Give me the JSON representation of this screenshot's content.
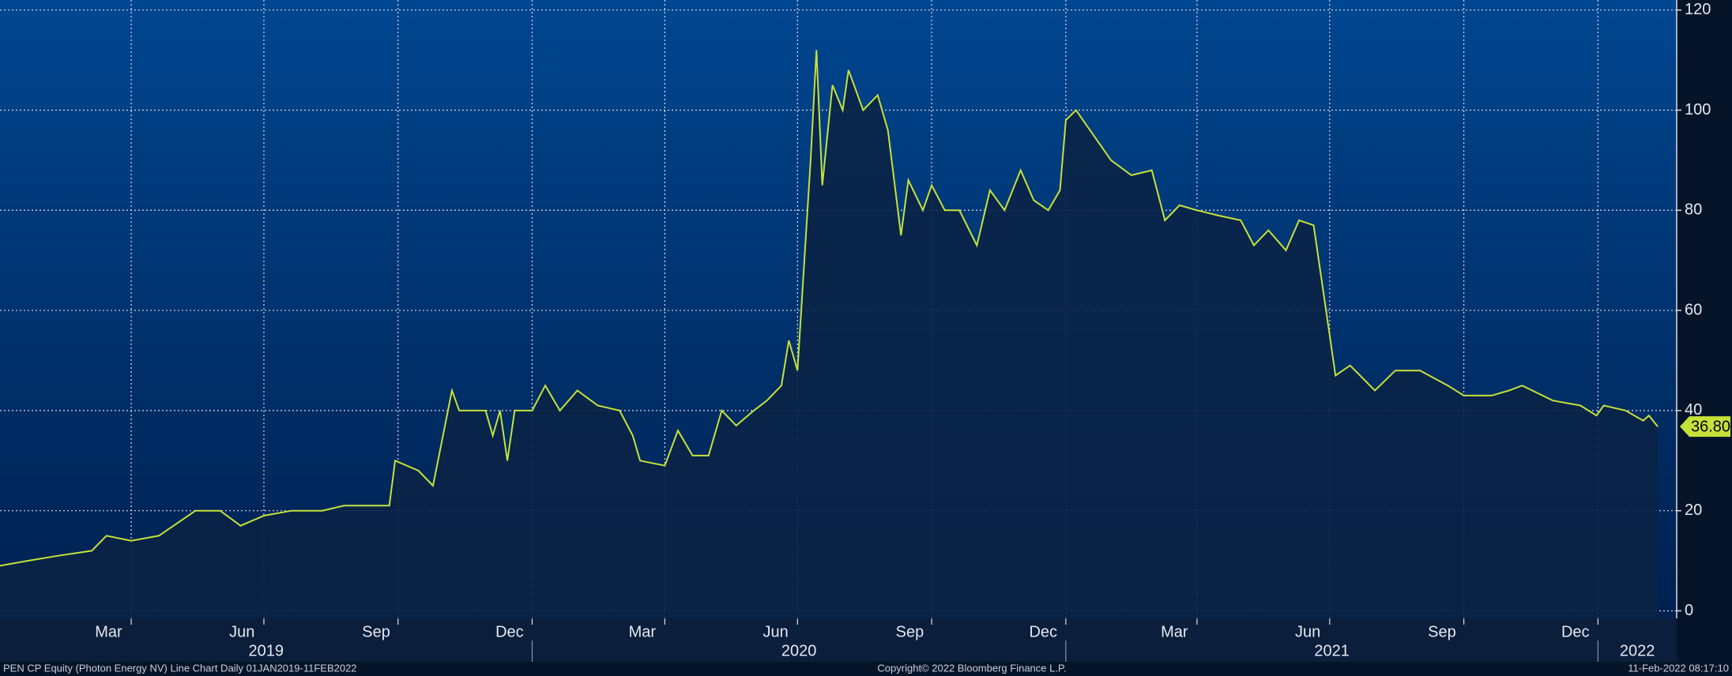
{
  "chart_data": {
    "type": "line",
    "x": [
      "2019-01-01",
      "2019-01-20",
      "2019-02-10",
      "2019-03-05",
      "2019-03-15",
      "2019-04-01",
      "2019-04-20",
      "2019-05-05",
      "2019-05-15",
      "2019-06-01",
      "2019-06-15",
      "2019-07-01",
      "2019-07-20",
      "2019-08-10",
      "2019-08-25",
      "2019-09-10",
      "2019-09-25",
      "2019-09-29",
      "2019-10-15",
      "2019-10-25",
      "2019-11-07",
      "2019-11-12",
      "2019-11-30",
      "2019-12-05",
      "2019-12-10",
      "2019-12-15",
      "2019-12-20",
      "2020-01-01",
      "2020-01-10",
      "2020-01-20",
      "2020-02-01",
      "2020-02-15",
      "2020-03-01",
      "2020-03-10",
      "2020-03-15",
      "2020-04-01",
      "2020-04-10",
      "2020-04-20",
      "2020-05-01",
      "2020-05-10",
      "2020-05-20",
      "2020-06-01",
      "2020-06-10",
      "2020-06-20",
      "2020-06-25",
      "2020-07-01",
      "2020-07-10",
      "2020-07-14",
      "2020-07-18",
      "2020-07-25",
      "2020-08-01",
      "2020-08-05",
      "2020-08-15",
      "2020-08-25",
      "2020-09-01",
      "2020-09-10",
      "2020-09-15",
      "2020-09-25",
      "2020-10-01",
      "2020-10-10",
      "2020-10-20",
      "2020-11-01",
      "2020-11-10",
      "2020-11-20",
      "2020-12-01",
      "2020-12-10",
      "2020-12-20",
      "2020-12-28",
      "2021-01-01",
      "2021-01-08",
      "2021-01-20",
      "2021-02-01",
      "2021-02-15",
      "2021-03-01",
      "2021-03-10",
      "2021-03-20",
      "2021-04-01",
      "2021-04-15",
      "2021-05-01",
      "2021-05-10",
      "2021-05-20",
      "2021-06-01",
      "2021-06-10",
      "2021-06-20",
      "2021-06-30",
      "2021-07-05",
      "2021-07-15",
      "2021-08-01",
      "2021-08-15",
      "2021-09-01",
      "2021-09-20",
      "2021-10-01",
      "2021-10-20",
      "2021-11-01",
      "2021-11-10",
      "2021-12-01",
      "2021-12-20",
      "2021-12-31",
      "2022-01-05",
      "2022-01-20",
      "2022-02-01",
      "2022-02-05",
      "2022-02-11"
    ],
    "series": [
      {
        "color": "#c6e13a",
        "values": [
          9,
          10,
          11,
          12,
          15,
          14,
          15,
          18,
          20,
          20,
          17,
          19,
          20,
          20,
          21,
          21,
          21,
          30,
          28,
          25,
          44,
          40,
          40,
          35,
          40,
          30,
          40,
          40,
          45,
          40,
          44,
          41,
          40,
          35,
          30,
          29,
          36,
          31,
          31,
          40,
          37,
          40,
          42,
          45,
          54,
          48,
          90,
          112,
          85,
          105,
          100,
          108,
          100,
          103,
          96,
          75,
          86,
          80,
          85,
          80,
          80,
          73,
          84,
          80,
          88,
          82,
          80,
          84,
          98,
          100,
          95,
          90,
          87,
          88,
          78,
          81,
          80,
          79,
          78,
          73,
          76,
          72,
          78,
          77,
          57,
          47,
          49,
          44,
          48,
          48,
          45,
          43,
          43,
          44,
          45,
          42,
          41,
          39,
          41,
          40,
          38,
          39,
          36.8
        ],
        "value_labels": [
          null,
          null,
          null,
          null,
          null,
          null,
          null,
          null,
          null,
          null,
          null,
          null,
          null,
          null,
          null,
          null,
          null,
          null,
          null,
          null,
          null,
          null,
          null,
          null,
          null,
          null,
          null,
          null,
          null,
          null,
          null,
          null,
          null,
          null,
          null,
          null,
          null,
          null,
          null,
          null,
          null,
          null,
          null,
          null,
          null,
          null,
          null,
          null,
          null,
          null,
          null,
          null,
          null,
          null,
          null,
          null,
          null,
          null,
          null,
          null,
          null,
          null,
          null,
          null,
          null,
          null,
          null,
          null,
          null,
          null,
          null,
          null,
          null,
          null,
          null,
          null,
          null,
          null,
          null,
          null,
          null,
          null,
          null,
          null,
          null,
          null,
          null,
          null,
          null,
          null,
          null,
          null,
          null,
          null,
          null,
          null,
          null,
          null,
          null,
          null,
          null,
          null,
          "36.80"
        ]
      }
    ],
    "xlim": [
      "2019-01-01",
      "2022-02-24"
    ],
    "xticks": [
      {
        "value": "2019-03",
        "label": "Mar"
      },
      {
        "value": "2019-06",
        "label": "Jun"
      },
      {
        "value": "2019-09",
        "label": "Sep"
      },
      {
        "value": "2019-12",
        "label": "Dec"
      },
      {
        "value": "2020-03",
        "label": "Mar"
      },
      {
        "value": "2020-06",
        "label": "Jun"
      },
      {
        "value": "2020-09",
        "label": "Sep"
      },
      {
        "value": "2020-12",
        "label": "Dec"
      },
      {
        "value": "2021-03",
        "label": "Mar"
      },
      {
        "value": "2021-06",
        "label": "Jun"
      },
      {
        "value": "2021-09",
        "label": "Sep"
      },
      {
        "value": "2021-12",
        "label": "Dec"
      }
    ],
    "year_ticks": [
      "2019",
      "2020",
      "2021",
      "2022"
    ],
    "ylim": [
      -1.5,
      122
    ],
    "yticks": [
      0,
      20,
      40,
      60,
      80,
      100,
      120
    ],
    "grid": true
  },
  "footer": {
    "left": "PEN CP Equity (Photon Energy NV) Line Chart  Daily 01JAN2019-11FEB2022",
    "center": "Copyright© 2022 Bloomberg Finance L.P.",
    "right": "11-Feb-2022 08:17:10"
  }
}
